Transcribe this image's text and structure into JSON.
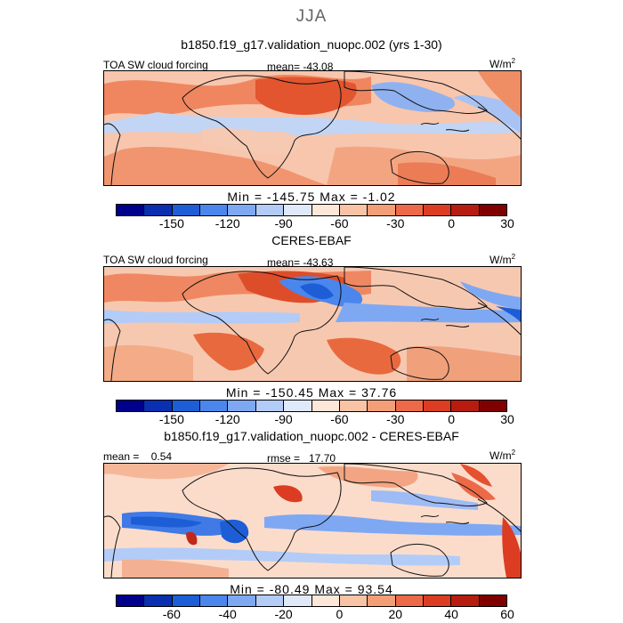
{
  "season": "JJA",
  "panels": [
    {
      "title": "b1850.f19_g17.validation_nuopc.002 (yrs 1-30)",
      "left_label": "TOA SW cloud forcing",
      "center_label": "mean= -43.08",
      "units": "W/m",
      "units_sup": "2",
      "minmax": "Min = -145.75 Max =  -1.02",
      "colorbar": {
        "colors": [
          "#00008b",
          "#0a2fb0",
          "#1d5ed6",
          "#4b86ec",
          "#7fa8f3",
          "#b2ccf7",
          "#dfe9f9",
          "#fde7d9",
          "#f9c3a6",
          "#f49e78",
          "#ec6a47",
          "#dc3c22",
          "#b71c10",
          "#800000"
        ],
        "ticks": [
          "-150",
          "-120",
          "-90",
          "-60",
          "-30",
          "0",
          "30"
        ]
      }
    },
    {
      "title": "CERES-EBAF",
      "left_label": "TOA SW cloud forcing",
      "center_label": "mean= -43.63",
      "units": "W/m",
      "units_sup": "2",
      "minmax": "Min = -150.45 Max =  37.76",
      "colorbar": {
        "colors": [
          "#00008b",
          "#0a2fb0",
          "#1d5ed6",
          "#4b86ec",
          "#7fa8f3",
          "#b2ccf7",
          "#dfe9f9",
          "#fde7d9",
          "#f9c3a6",
          "#f49e78",
          "#ec6a47",
          "#dc3c22",
          "#b71c10",
          "#800000"
        ],
        "ticks": [
          "-150",
          "-120",
          "-90",
          "-60",
          "-30",
          "0",
          "30"
        ]
      }
    },
    {
      "title": "b1850.f19_g17.validation_nuopc.002 - CERES-EBAF",
      "left_label": "mean =    0.54",
      "center_label": "rmse =   17.70",
      "units": "W/m",
      "units_sup": "2",
      "minmax": "Min = -80.49 Max =  93.54",
      "colorbar": {
        "colors": [
          "#00008b",
          "#0a2fb0",
          "#1d5ed6",
          "#4b86ec",
          "#7fa8f3",
          "#b2ccf7",
          "#dfe9f9",
          "#fde7d9",
          "#f9c3a6",
          "#f49e78",
          "#ec6a47",
          "#dc3c22",
          "#b71c10",
          "#800000"
        ],
        "ticks": [
          "-60",
          "-40",
          "-20",
          "0",
          "20",
          "40",
          "60"
        ]
      }
    }
  ]
}
